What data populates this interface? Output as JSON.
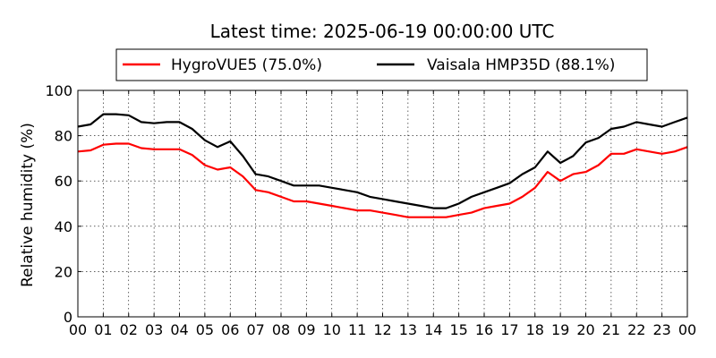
{
  "chart_data": {
    "type": "line",
    "title": "Latest time: 2025-06-19 00:00:00 UTC",
    "xlabel": "",
    "ylabel": "Relative humidity (%)",
    "xlim": [
      0,
      24
    ],
    "ylim": [
      0,
      100
    ],
    "grid": true,
    "legend_position": "top",
    "x_tick_labels": [
      "00",
      "01",
      "02",
      "03",
      "04",
      "05",
      "06",
      "07",
      "08",
      "09",
      "10",
      "11",
      "12",
      "13",
      "14",
      "15",
      "16",
      "17",
      "18",
      "19",
      "20",
      "21",
      "22",
      "23",
      "00"
    ],
    "y_tick_labels": [
      "0",
      "20",
      "40",
      "60",
      "80",
      "100"
    ],
    "x_hours": [
      0,
      0.5,
      1,
      1.5,
      2,
      2.5,
      3,
      3.5,
      4,
      4.5,
      5,
      5.5,
      6,
      6.5,
      7,
      7.5,
      8,
      8.5,
      9,
      9.5,
      10,
      10.5,
      11,
      11.5,
      12,
      12.5,
      13,
      13.5,
      14,
      14.5,
      15,
      15.5,
      16,
      16.5,
      17,
      17.5,
      18,
      18.5,
      19,
      19.5,
      20,
      20.5,
      21,
      21.5,
      22,
      22.5,
      23,
      23.5,
      24
    ],
    "series": [
      {
        "name": "HygroVUE5 (75.0%)",
        "color": "#ff0000",
        "values": [
          73,
          73.5,
          76,
          76.5,
          76.5,
          74.5,
          74,
          74,
          74,
          71.5,
          67,
          65,
          66,
          62,
          56,
          55,
          53,
          51,
          51,
          50,
          49,
          48,
          47,
          47,
          46,
          45,
          44,
          44,
          44,
          44,
          45,
          46,
          48,
          49,
          50,
          53,
          57,
          64,
          60,
          63,
          64,
          67,
          72,
          72,
          74,
          73,
          72,
          73,
          75
        ]
      },
      {
        "name": "Vaisala HMP35D (88.1%)",
        "color": "#000000",
        "values": [
          84,
          85,
          89.5,
          89.5,
          89,
          86,
          85.5,
          86,
          86,
          83,
          78,
          75,
          77.5,
          71,
          63,
          62,
          60,
          58,
          58,
          58,
          57,
          56,
          55,
          53,
          52,
          51,
          50,
          49,
          48,
          48,
          50,
          53,
          55,
          57,
          59,
          63,
          66,
          73,
          68,
          71,
          77,
          79,
          83,
          84,
          86,
          85,
          84,
          86,
          88
        ]
      }
    ]
  }
}
